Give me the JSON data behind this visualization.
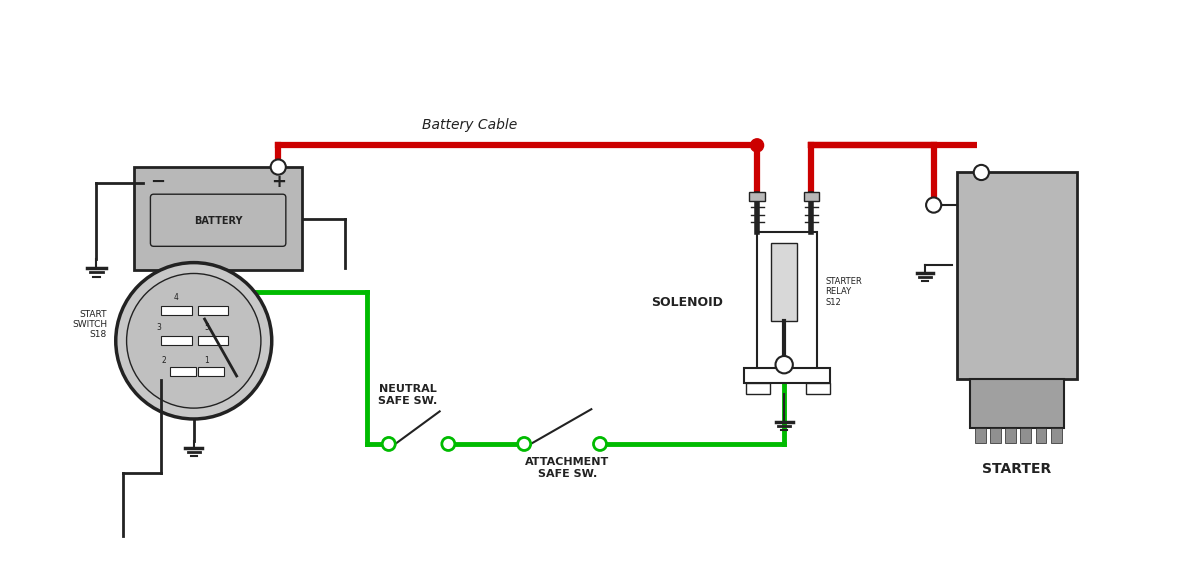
{
  "bg_color": "#ffffff",
  "wire_red": "#cc0000",
  "wire_green": "#00bb00",
  "wire_black": "#222222",
  "component_fill": "#b8b8b8",
  "component_edge": "#222222",
  "text_color": "#222222",
  "battery_label": "BATTERY",
  "battery_cable_label": "Battery Cable",
  "solenoid_label": "SOLENOID",
  "starter_relay_label": "STARTER\nRELAY\nS12",
  "starter_label": "STARTER",
  "start_switch_label": "START\nSWITCH\nS18",
  "neutral_sw_label": "NEUTRAL\nSAFE SW.",
  "attachment_sw_label": "ATTACHMENT\nSAFE SW."
}
